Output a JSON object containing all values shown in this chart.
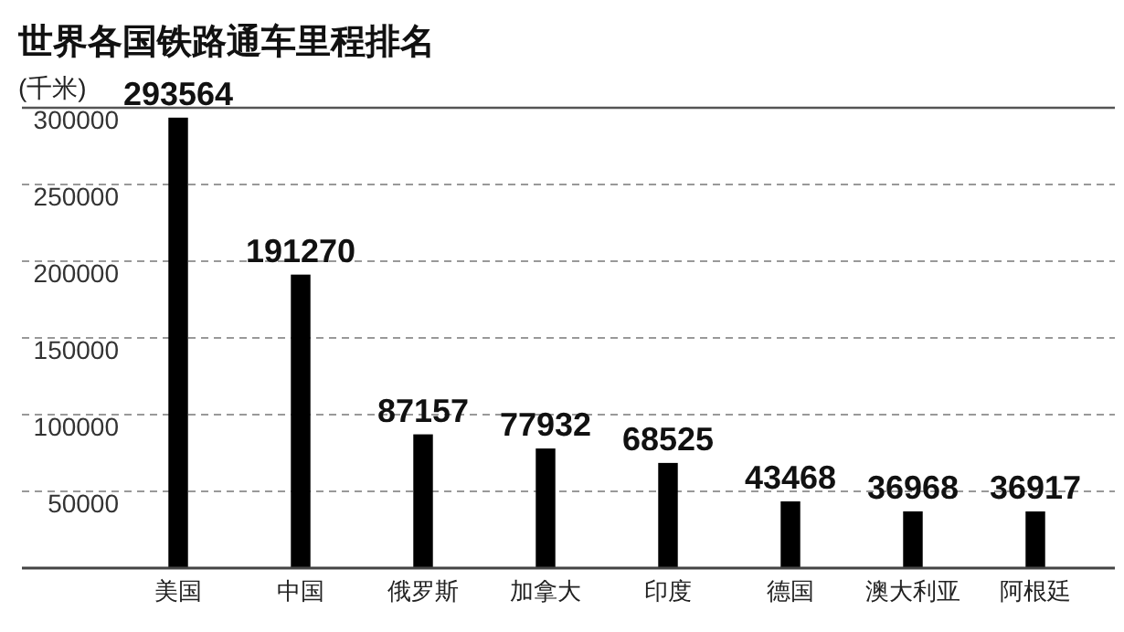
{
  "chart_data": {
    "type": "bar",
    "title": "世界各国铁路通车里程排名",
    "ylabel": "(千米)",
    "categories": [
      "美国",
      "中国",
      "俄罗斯",
      "加拿大",
      "印度",
      "德国",
      "澳大利亚",
      "阿根廷"
    ],
    "values": [
      293564,
      191270,
      87157,
      77932,
      68525,
      43468,
      36968,
      36917
    ],
    "color": "#000000",
    "ylim": [
      0,
      300000
    ],
    "yticks": [
      50000,
      100000,
      150000,
      200000,
      250000,
      300000
    ],
    "grid": "y",
    "data_labels": true
  }
}
